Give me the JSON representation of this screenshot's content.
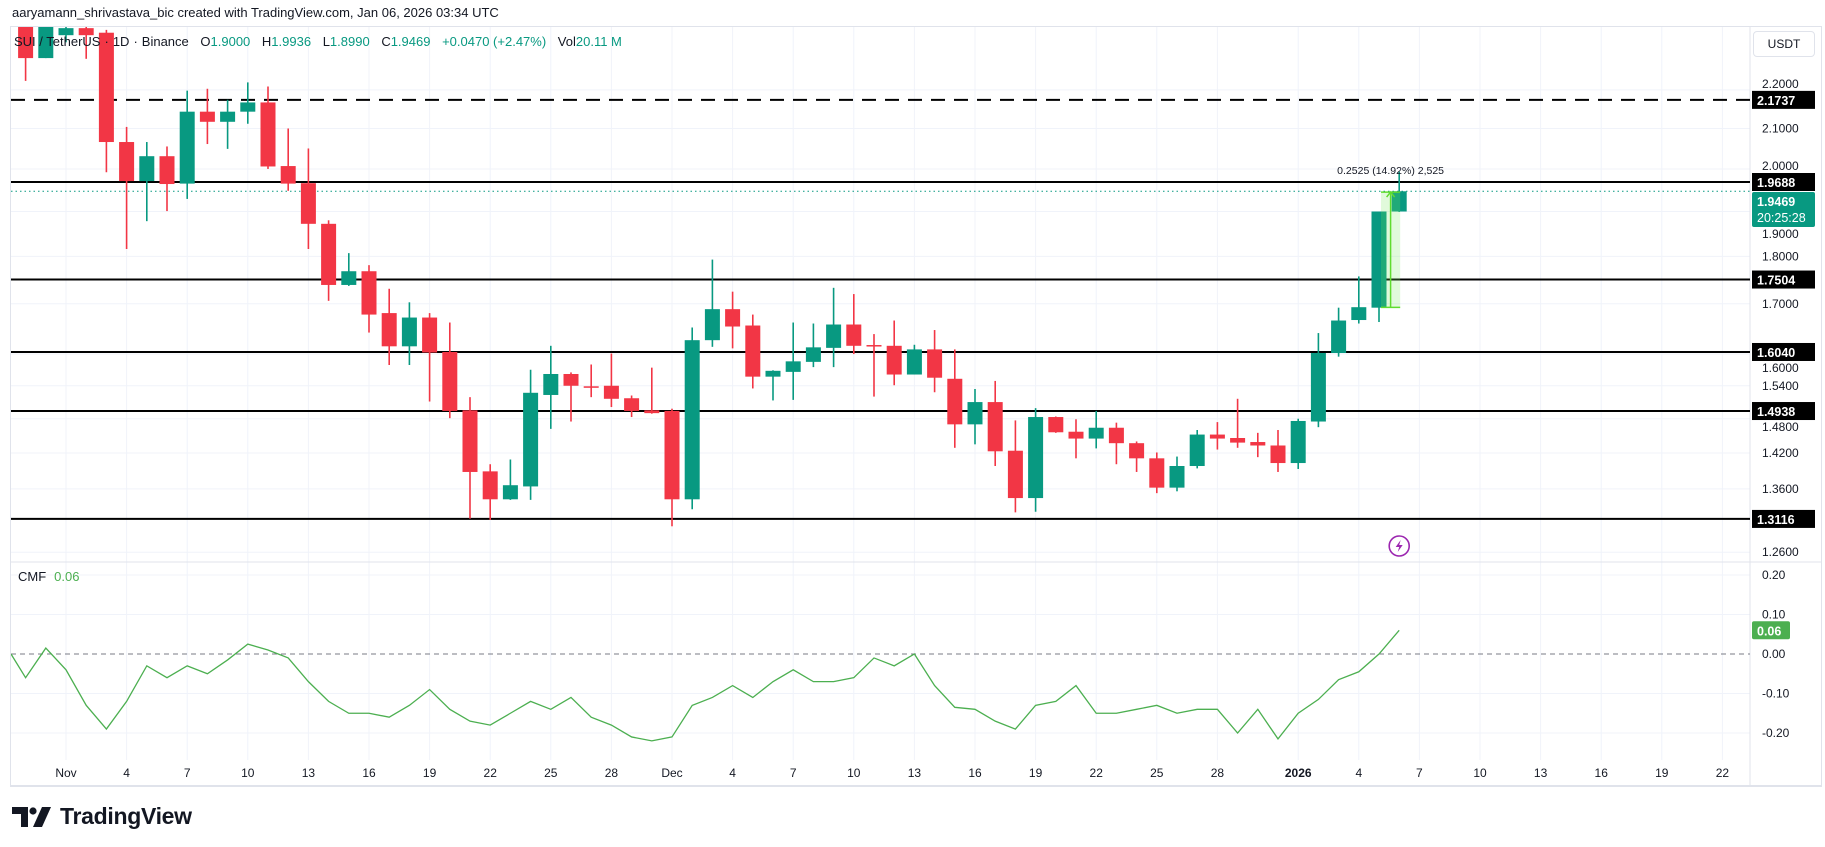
{
  "attribution": "aaryamann_shrivastava_bic created with TradingView.com, Jan 06, 2026 03:34 UTC",
  "legend": {
    "symbol": "SUI / TetherUS",
    "interval": "1D",
    "exchange": "Binance",
    "o_label": "O",
    "o": "1.9000",
    "h_label": "H",
    "h": "1.9936",
    "l_label": "L",
    "l": "1.8990",
    "c_label": "C",
    "c": "1.9469",
    "change": "+0.0470 (+2.47%)",
    "vol_label": "Vol",
    "vol": "20.11 M"
  },
  "price_axis": {
    "currency": "USDT",
    "scale": "log",
    "ticks": [
      "2.2000",
      "2.1000",
      "2.0000",
      "1.9000",
      "1.8000",
      "1.7000",
      "1.6000",
      "1.5400",
      "1.4800",
      "1.4200",
      "1.3600",
      "1.2600"
    ]
  },
  "levels": [
    {
      "price": "2.1737",
      "style": "dashed"
    },
    {
      "price": "1.9688",
      "style": "solid"
    },
    {
      "price": "1.7504",
      "style": "solid"
    },
    {
      "price": "1.6040",
      "style": "solid"
    },
    {
      "price": "1.4938",
      "style": "solid"
    },
    {
      "price": "1.3116",
      "style": "solid"
    }
  ],
  "current_price": {
    "value": "1.9469",
    "countdown": "20:25:28"
  },
  "measure": {
    "text": "0.2525 (14.92%) 2,525",
    "from": 1.6925,
    "to": 1.945,
    "start": "2026-01-05",
    "end": "2026-01-06"
  },
  "event_icon": {
    "name": "lightning-icon",
    "date": "2026-01-06",
    "color": "#9c27b0"
  },
  "indicator": {
    "name": "CMF",
    "value": "0.06",
    "ticks": [
      "0.20",
      "0.10",
      "0.00",
      "-0.10",
      "-0.20"
    ],
    "color": "#4caf50"
  },
  "x_axis": [
    {
      "label": "Nov",
      "date": "2025-11-01"
    },
    {
      "label": "4",
      "date": "2025-11-04"
    },
    {
      "label": "7",
      "date": "2025-11-07"
    },
    {
      "label": "10",
      "date": "2025-11-10"
    },
    {
      "label": "13",
      "date": "2025-11-13"
    },
    {
      "label": "16",
      "date": "2025-11-16"
    },
    {
      "label": "19",
      "date": "2025-11-19"
    },
    {
      "label": "22",
      "date": "2025-11-22"
    },
    {
      "label": "25",
      "date": "2025-11-25"
    },
    {
      "label": "28",
      "date": "2025-11-28"
    },
    {
      "label": "Dec",
      "date": "2025-12-01"
    },
    {
      "label": "4",
      "date": "2025-12-04"
    },
    {
      "label": "7",
      "date": "2025-12-07"
    },
    {
      "label": "10",
      "date": "2025-12-10"
    },
    {
      "label": "13",
      "date": "2025-12-13"
    },
    {
      "label": "16",
      "date": "2025-12-16"
    },
    {
      "label": "19",
      "date": "2025-12-19"
    },
    {
      "label": "22",
      "date": "2025-12-22"
    },
    {
      "label": "25",
      "date": "2025-12-25"
    },
    {
      "label": "28",
      "date": "2025-12-28"
    },
    {
      "label": "2026",
      "date": "2026-01-01",
      "bold": true
    },
    {
      "label": "4",
      "date": "2026-01-04"
    },
    {
      "label": "7",
      "date": "2026-01-07"
    },
    {
      "label": "10",
      "date": "2026-01-10"
    },
    {
      "label": "13",
      "date": "2026-01-13"
    },
    {
      "label": "16",
      "date": "2026-01-16"
    },
    {
      "label": "19",
      "date": "2026-01-19"
    },
    {
      "label": "22",
      "date": "2026-01-22"
    }
  ],
  "colors": {
    "up": "#089981",
    "down": "#f23645",
    "level": "#000000",
    "grid": "#f0f3fa"
  },
  "footer": {
    "brand": "TradingView"
  },
  "chart_data": {
    "type": "candlestick",
    "start_date": "2025-10-30",
    "ohlc": [
      [
        2.4,
        2.42,
        2.224,
        2.286
      ],
      [
        2.286,
        2.42,
        2.286,
        2.38
      ],
      [
        2.35,
        2.42,
        2.33,
        2.37
      ],
      [
        2.37,
        2.4,
        2.284,
        2.35
      ],
      [
        2.357,
        2.365,
        1.992,
        2.066
      ],
      [
        2.066,
        2.104,
        1.816,
        1.971
      ],
      [
        1.971,
        2.066,
        1.878,
        2.031
      ],
      [
        2.031,
        2.055,
        1.901,
        1.964
      ],
      [
        1.965,
        2.198,
        1.929,
        2.143
      ],
      [
        2.143,
        2.203,
        2.061,
        2.117
      ],
      [
        2.117,
        2.174,
        2.049,
        2.143
      ],
      [
        2.143,
        2.22,
        2.112,
        2.167
      ],
      [
        2.167,
        2.209,
        2.0,
        2.006
      ],
      [
        2.007,
        2.1,
        1.948,
        1.965
      ],
      [
        1.966,
        2.05,
        1.816,
        1.872
      ],
      [
        1.872,
        1.88,
        1.706,
        1.739
      ],
      [
        1.739,
        1.807,
        1.737,
        1.768
      ],
      [
        1.768,
        1.781,
        1.642,
        1.678
      ],
      [
        1.681,
        1.731,
        1.579,
        1.615
      ],
      [
        1.615,
        1.703,
        1.579,
        1.672
      ],
      [
        1.672,
        1.681,
        1.511,
        1.603
      ],
      [
        1.604,
        1.662,
        1.481,
        1.494
      ],
      [
        1.495,
        1.519,
        1.312,
        1.388
      ],
      [
        1.389,
        1.401,
        1.31,
        1.343
      ],
      [
        1.343,
        1.409,
        1.342,
        1.366
      ],
      [
        1.364,
        1.57,
        1.342,
        1.527
      ],
      [
        1.523,
        1.616,
        1.462,
        1.562
      ],
      [
        1.562,
        1.565,
        1.475,
        1.54
      ],
      [
        1.539,
        1.58,
        1.519,
        1.537
      ],
      [
        1.54,
        1.601,
        1.501,
        1.516
      ],
      [
        1.517,
        1.522,
        1.483,
        1.494
      ],
      [
        1.495,
        1.574,
        1.489,
        1.49
      ],
      [
        1.494,
        1.498,
        1.3,
        1.343
      ],
      [
        1.343,
        1.652,
        1.327,
        1.627
      ],
      [
        1.627,
        1.793,
        1.614,
        1.689
      ],
      [
        1.689,
        1.725,
        1.611,
        1.654
      ],
      [
        1.656,
        1.678,
        1.535,
        1.557
      ],
      [
        1.557,
        1.569,
        1.513,
        1.568
      ],
      [
        1.566,
        1.662,
        1.514,
        1.586
      ],
      [
        1.585,
        1.66,
        1.575,
        1.613
      ],
      [
        1.612,
        1.733,
        1.575,
        1.658
      ],
      [
        1.658,
        1.72,
        1.6,
        1.616
      ],
      [
        1.6175,
        1.639,
        1.52,
        1.615
      ],
      [
        1.616,
        1.666,
        1.541,
        1.561
      ],
      [
        1.561,
        1.618,
        1.561,
        1.609
      ],
      [
        1.609,
        1.647,
        1.528,
        1.555
      ],
      [
        1.553,
        1.609,
        1.429,
        1.47
      ],
      [
        1.47,
        1.534,
        1.435,
        1.51
      ],
      [
        1.51,
        1.549,
        1.398,
        1.423
      ],
      [
        1.424,
        1.477,
        1.322,
        1.345
      ],
      [
        1.345,
        1.499,
        1.323,
        1.483
      ],
      [
        1.483,
        1.484,
        1.455,
        1.456
      ],
      [
        1.457,
        1.479,
        1.411,
        1.445
      ],
      [
        1.445,
        1.494,
        1.428,
        1.464
      ],
      [
        1.464,
        1.473,
        1.401,
        1.437
      ],
      [
        1.437,
        1.44,
        1.388,
        1.411
      ],
      [
        1.411,
        1.421,
        1.353,
        1.362
      ],
      [
        1.362,
        1.414,
        1.356,
        1.398
      ],
      [
        1.398,
        1.46,
        1.394,
        1.452
      ],
      [
        1.452,
        1.474,
        1.426,
        1.445
      ],
      [
        1.446,
        1.516,
        1.429,
        1.438
      ],
      [
        1.439,
        1.455,
        1.413,
        1.433
      ],
      [
        1.433,
        1.46,
        1.388,
        1.403
      ],
      [
        1.403,
        1.48,
        1.393,
        1.476
      ],
      [
        1.475,
        1.641,
        1.465,
        1.602
      ],
      [
        1.602,
        1.692,
        1.595,
        1.666
      ],
      [
        1.667,
        1.757,
        1.66,
        1.693
      ],
      [
        1.692,
        1.9,
        1.663,
        1.9
      ],
      [
        1.9,
        1.9936,
        1.899,
        1.9469
      ]
    ],
    "cmf": [
      -0.06,
      0.015,
      -0.04,
      -0.13,
      -0.19,
      -0.12,
      -0.03,
      -0.06,
      -0.03,
      -0.05,
      -0.015,
      0.025,
      0.01,
      -0.01,
      -0.07,
      -0.12,
      -0.15,
      -0.15,
      -0.16,
      -0.13,
      -0.09,
      -0.14,
      -0.17,
      -0.18,
      -0.15,
      -0.12,
      -0.14,
      -0.11,
      -0.16,
      -0.18,
      -0.21,
      -0.22,
      -0.21,
      -0.13,
      -0.11,
      -0.08,
      -0.11,
      -0.07,
      -0.04,
      -0.07,
      -0.07,
      -0.06,
      -0.01,
      -0.03,
      0.0,
      -0.08,
      -0.135,
      -0.14,
      -0.17,
      -0.19,
      -0.13,
      -0.12,
      -0.08,
      -0.15,
      -0.15,
      -0.14,
      -0.13,
      -0.15,
      -0.14,
      -0.14,
      -0.2,
      -0.14,
      -0.215,
      -0.15,
      -0.115,
      -0.065,
      -0.045,
      0.0,
      0.06
    ],
    "cmf_ylim": [
      -0.25,
      0.22
    ]
  }
}
